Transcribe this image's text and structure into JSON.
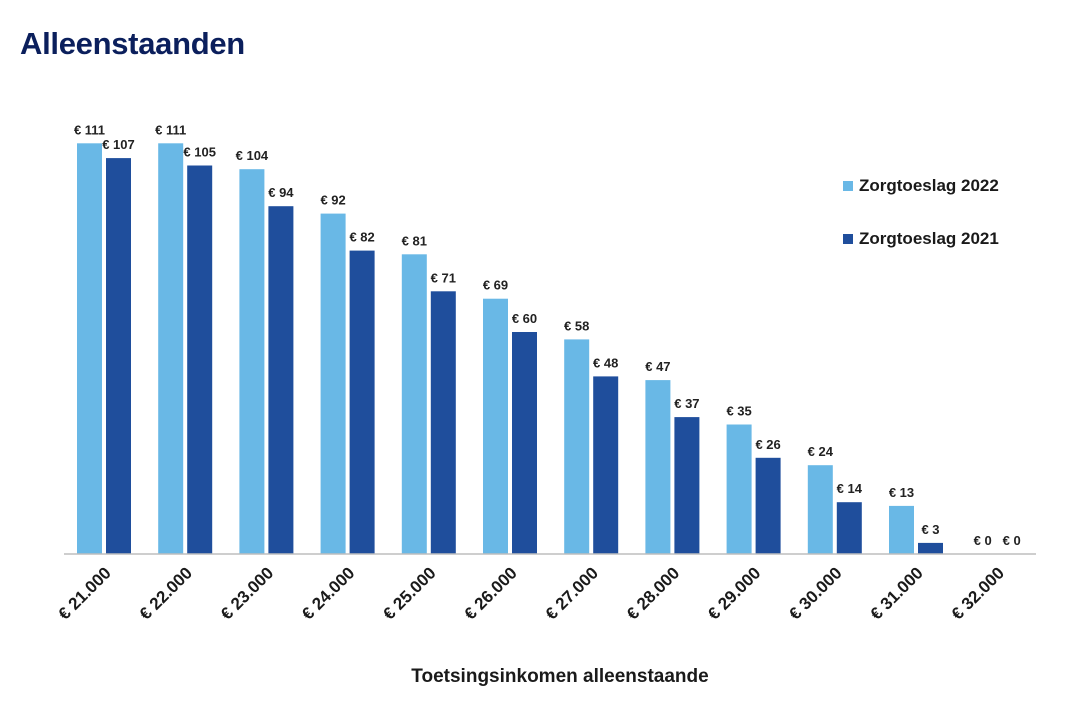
{
  "page": {
    "title": "Alleenstaanden"
  },
  "chart_data": {
    "type": "bar",
    "title": "",
    "xlabel": "Toetsingsinkomen alleenstaande",
    "ylabel": "",
    "ylim": [
      0,
      120
    ],
    "grid": false,
    "legend_position": "right",
    "value_prefix": "€ ",
    "categories": [
      "€ 21.000",
      "€ 22.000",
      "€ 23.000",
      "€ 24.000",
      "€ 25.000",
      "€ 26.000",
      "€ 27.000",
      "€ 28.000",
      "€ 29.000",
      "€ 30.000",
      "€ 31.000",
      "€ 32.000"
    ],
    "series": [
      {
        "name": "Zorgtoeslag 2022",
        "color": "#69b8e6",
        "values": [
          111,
          111,
          104,
          92,
          81,
          69,
          58,
          47,
          35,
          24,
          13,
          0
        ]
      },
      {
        "name": "Zorgtoeslag 2021",
        "color": "#1f4e9c",
        "values": [
          107,
          105,
          94,
          82,
          71,
          60,
          48,
          37,
          26,
          14,
          3,
          0
        ]
      }
    ]
  }
}
